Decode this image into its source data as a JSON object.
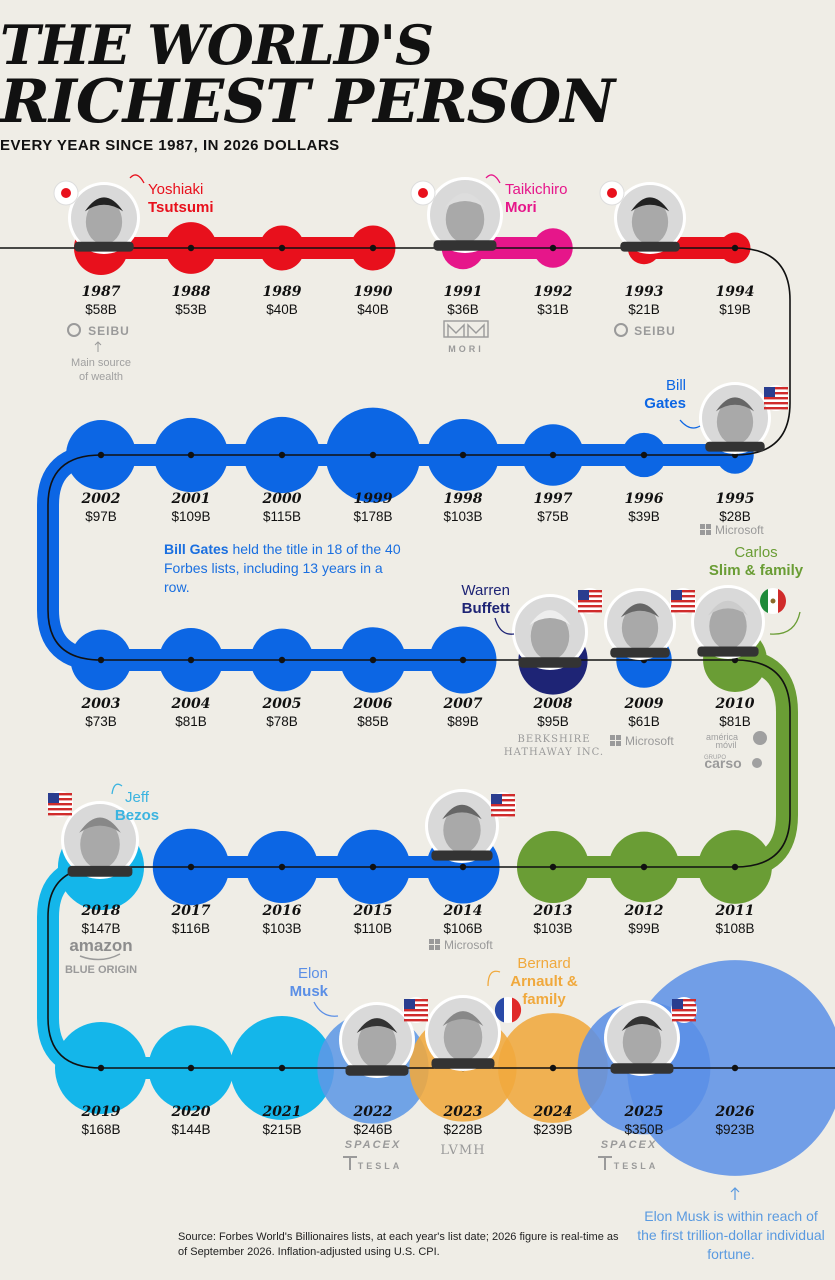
{
  "header": {
    "title_line1": "THE WORLD'S",
    "title_line2": "RICHEST PERSON",
    "subtitle": "EVERY YEAR SINCE 1987, IN 2026 DOLLARS"
  },
  "colors": {
    "tsutsumi": "#e8101c",
    "mori": "#e6168a",
    "gates": "#0c66e4",
    "buffett": "#1e2475",
    "slim": "#6a9d35",
    "bezos": "#14b6ea",
    "musk": "#5b8fe6",
    "arnault": "#f0a93d",
    "musk_2022": "#5f98e6",
    "line": "#111111"
  },
  "chart_data": {
    "type": "bubble-timeline",
    "unit": "B USD (2026 dollars)",
    "points": [
      {
        "year": "1987",
        "label": "$58B",
        "value": 58,
        "person": "tsutsumi"
      },
      {
        "year": "1988",
        "label": "$53B",
        "value": 53,
        "person": "tsutsumi"
      },
      {
        "year": "1989",
        "label": "$40B",
        "value": 40,
        "person": "tsutsumi"
      },
      {
        "year": "1990",
        "label": "$40B",
        "value": 40,
        "person": "tsutsumi"
      },
      {
        "year": "1991",
        "label": "$36B",
        "value": 36,
        "person": "mori"
      },
      {
        "year": "1992",
        "label": "$31B",
        "value": 31,
        "person": "mori"
      },
      {
        "year": "1993",
        "label": "$21B",
        "value": 21,
        "person": "tsutsumi"
      },
      {
        "year": "1994",
        "label": "$19B",
        "value": 19,
        "person": "tsutsumi"
      },
      {
        "year": "1995",
        "label": "$28B",
        "value": 28,
        "person": "gates"
      },
      {
        "year": "1996",
        "label": "$39B",
        "value": 39,
        "person": "gates"
      },
      {
        "year": "1997",
        "label": "$75B",
        "value": 75,
        "person": "gates"
      },
      {
        "year": "1998",
        "label": "$103B",
        "value": 103,
        "person": "gates"
      },
      {
        "year": "1999",
        "label": "$178B",
        "value": 178,
        "person": "gates"
      },
      {
        "year": "2000",
        "label": "$115B",
        "value": 115,
        "person": "gates"
      },
      {
        "year": "2001",
        "label": "$109B",
        "value": 109,
        "person": "gates"
      },
      {
        "year": "2002",
        "label": "$97B",
        "value": 97,
        "person": "gates"
      },
      {
        "year": "2003",
        "label": "$73B",
        "value": 73,
        "person": "gates"
      },
      {
        "year": "2004",
        "label": "$81B",
        "value": 81,
        "person": "gates"
      },
      {
        "year": "2005",
        "label": "$78B",
        "value": 78,
        "person": "gates"
      },
      {
        "year": "2006",
        "label": "$85B",
        "value": 85,
        "person": "gates"
      },
      {
        "year": "2007",
        "label": "$89B",
        "value": 89,
        "person": "gates"
      },
      {
        "year": "2008",
        "label": "$95B",
        "value": 95,
        "person": "buffett"
      },
      {
        "year": "2009",
        "label": "$61B",
        "value": 61,
        "person": "gates"
      },
      {
        "year": "2010",
        "label": "$81B",
        "value": 81,
        "person": "slim"
      },
      {
        "year": "2011",
        "label": "$108B",
        "value": 108,
        "person": "slim"
      },
      {
        "year": "2012",
        "label": "$99B",
        "value": 99,
        "person": "slim"
      },
      {
        "year": "2013",
        "label": "$103B",
        "value": 103,
        "person": "slim"
      },
      {
        "year": "2014",
        "label": "$106B",
        "value": 106,
        "person": "gates"
      },
      {
        "year": "2015",
        "label": "$110B",
        "value": 110,
        "person": "gates"
      },
      {
        "year": "2016",
        "label": "$103B",
        "value": 103,
        "person": "gates"
      },
      {
        "year": "2017",
        "label": "$116B",
        "value": 116,
        "person": "gates"
      },
      {
        "year": "2018",
        "label": "$147B",
        "value": 147,
        "person": "bezos"
      },
      {
        "year": "2019",
        "label": "$168B",
        "value": 168,
        "person": "bezos"
      },
      {
        "year": "2020",
        "label": "$144B",
        "value": 144,
        "person": "bezos"
      },
      {
        "year": "2021",
        "label": "$215B",
        "value": 215,
        "person": "bezos"
      },
      {
        "year": "2022",
        "label": "$246B",
        "value": 246,
        "person": "musk_2022"
      },
      {
        "year": "2023",
        "label": "$228B",
        "value": 228,
        "person": "arnault"
      },
      {
        "year": "2024",
        "label": "$239B",
        "value": 239,
        "person": "arnault"
      },
      {
        "year": "2025",
        "label": "$350B",
        "value": 350,
        "person": "musk"
      },
      {
        "year": "2026",
        "label": "$923B",
        "value": 923,
        "person": "musk"
      }
    ]
  },
  "people": [
    {
      "key": "tsutsumi",
      "first": "Yoshiaki",
      "last": "Tsutsumi",
      "flag": "japan-flag-icon"
    },
    {
      "key": "mori",
      "first": "Taikichiro",
      "last": "Mori",
      "flag": "japan-flag-icon"
    },
    {
      "key": "gates",
      "first": "Bill",
      "last": "Gates",
      "flag": "usa-flag-icon"
    },
    {
      "key": "buffett",
      "first": "Warren",
      "last": "Buffett",
      "flag": "usa-flag-icon"
    },
    {
      "key": "slim",
      "first": "Carlos",
      "last": "Slim & family",
      "flag": "mexico-flag-icon"
    },
    {
      "key": "bezos",
      "first": "Jeff",
      "last": "Bezos",
      "flag": "usa-flag-icon"
    },
    {
      "key": "musk",
      "first": "Elon",
      "last": "Musk",
      "flag": "usa-flag-icon"
    },
    {
      "key": "arnault",
      "first": "Bernard",
      "last": "Arnault &",
      "last2": "family",
      "flag": "france-flag-icon"
    }
  ],
  "logos": {
    "seibu": "SEIBU",
    "mori": "MORI",
    "microsoft": "Microsoft",
    "berkshire1": "BERKSHIRE",
    "berkshire2": "HATHAWAY INC.",
    "america_movil1": "américa",
    "america_movil2": "móvil",
    "grupo": "GRUPO",
    "carso": "carso",
    "amazon": "amazon",
    "blue_origin": "BLUE ORIGIN",
    "spacex": "SPACEX",
    "tesla": "TESLA",
    "lvmh": "LVMH"
  },
  "annotations": {
    "wealth_source_1": "Main source",
    "wealth_source_2": "of wealth",
    "gates_note_bold": "Bill Gates",
    "gates_note_rest": " held the title in 18 of the 40 Forbes lists, including 13 years in a row.",
    "musk_note": "Elon Musk is within reach of the first trillion-dollar individual fortune."
  },
  "source": "Source: Forbes World's Billionaires lists, at each year's list date; 2026 figure is real-time as of September 2026. Inflation-adjusted using U.S. CPI."
}
